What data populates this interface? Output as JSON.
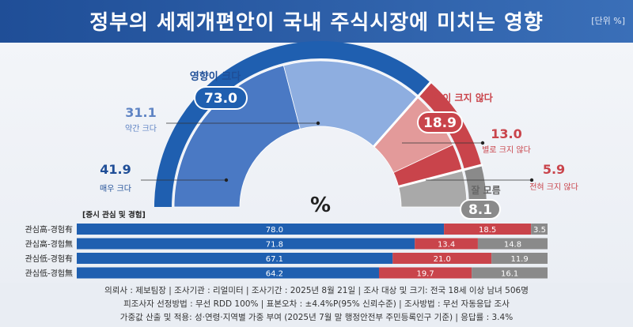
{
  "title": "정부의 세제개편안이 국내 주식시장에 미치는 영향",
  "unit": "[단위 %]",
  "chart_data": [
    {
      "type": "pie",
      "shape": "half-donut",
      "center_label": "%",
      "groups": [
        {
          "label": "영향이 크다",
          "value": 73.0,
          "color": "#1f5fb0",
          "items": [
            {
              "label": "매우 크다",
              "value": 41.9,
              "color": "#4a79c4"
            },
            {
              "label": "약간 크다",
              "value": 31.1,
              "color": "#8eaee0"
            }
          ]
        },
        {
          "label": "영향이 크지 않다",
          "value": 18.9,
          "color": "#c9444b",
          "items": [
            {
              "label": "별로 크지 않다",
              "value": 13.0,
              "color": "#e39a9a"
            },
            {
              "label": "전혀 크지 않다",
              "value": 5.9,
              "color": "#c9444b"
            }
          ]
        },
        {
          "label": "잘 모름",
          "value": 8.1,
          "color": "#8a8a8a",
          "items": [
            {
              "label": "",
              "value": 8.1,
              "color": "#a9a9a9"
            }
          ]
        }
      ]
    },
    {
      "type": "bar",
      "orientation": "horizontal",
      "stacked": true,
      "title": "[증시 관심 및 경험]",
      "categories": [
        "관심高-경험有",
        "관심高-경험無",
        "관심低-경험有",
        "관심低-경험無"
      ],
      "series": [
        {
          "name": "영향이 크다",
          "values": [
            78.0,
            71.8,
            67.1,
            64.2
          ],
          "color": "#1f5fb0"
        },
        {
          "name": "영향이 크지 않다",
          "values": [
            18.5,
            13.4,
            21.0,
            19.7
          ],
          "color": "#c9444b"
        },
        {
          "name": "잘 모름",
          "values": [
            3.5,
            14.8,
            11.9,
            16.1
          ],
          "color": "#8a8a8a"
        }
      ]
    }
  ],
  "footer": {
    "line1": "의뢰사 : 제보팀장  |  조사기관 : 리얼미터  |  조사기간 : 2025년 8월 21일  |  조사 대상 및 크기: 전국 18세 이상 남녀 506명",
    "line2": "피조사자 선정방법 : 무선 RDD 100%  |  표본오차 : ±4.4%P(95% 신뢰수준)  |  조사방법 : 무선 자동응답 조사",
    "line3": "가중값 산출 및 적용: 성·연령·지역별 가중 부여 (2025년 7월 말 행정안전부 주민등록인구 기준)  |  응답률 : 3.4%"
  }
}
